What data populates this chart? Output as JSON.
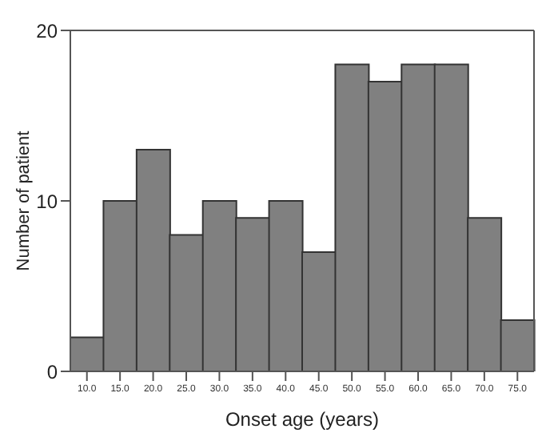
{
  "chart_data": {
    "type": "histogram",
    "xlabel": "Onset age (years)",
    "ylabel": "Number of patient",
    "bins": [
      7.5,
      12.5,
      17.5,
      22.5,
      27.5,
      32.5,
      37.5,
      42.5,
      47.5,
      52.5,
      57.5,
      62.5,
      67.5,
      72.5,
      77.5
    ],
    "values": [
      2,
      10,
      13,
      8,
      10,
      9,
      10,
      7,
      18,
      17,
      18,
      18,
      9,
      3
    ],
    "color": "#808080",
    "xticks": [
      {
        "value": 10,
        "label": "10.0"
      },
      {
        "value": 15,
        "label": "15.0"
      },
      {
        "value": 20,
        "label": "20.0"
      },
      {
        "value": 25,
        "label": "25.0"
      },
      {
        "value": 30,
        "label": "30.0"
      },
      {
        "value": 35,
        "label": "35.0"
      },
      {
        "value": 40,
        "label": "40.0"
      },
      {
        "value": 45,
        "label": "45.0"
      },
      {
        "value": 50,
        "label": "50.0"
      },
      {
        "value": 55,
        "label": "55.0"
      },
      {
        "value": 60,
        "label": "60.0"
      },
      {
        "value": 65,
        "label": "65.0"
      },
      {
        "value": 70,
        "label": "70.0"
      },
      {
        "value": 75,
        "label": "75.0"
      }
    ],
    "xlim": [
      7.5,
      77.5
    ],
    "ylim": [
      0,
      20
    ],
    "yticks": [
      0,
      10,
      20
    ],
    "grid": false
  }
}
